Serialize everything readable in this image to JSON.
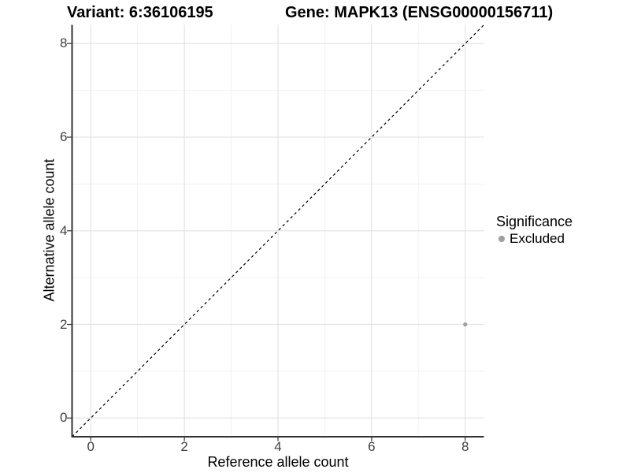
{
  "header": {
    "variant_title": "Variant: 6:36106195",
    "gene_title": "Gene: MAPK13 (ENSG00000156711)"
  },
  "chart_data": {
    "type": "scatter",
    "title_left": "Variant: 6:36106195",
    "title_right": "Gene: MAPK13 (ENSG00000156711)",
    "xlabel": "Reference allele count",
    "ylabel": "Alternative allele count",
    "xlim": [
      -0.4,
      8.4
    ],
    "ylim": [
      -0.4,
      8.4
    ],
    "x_ticks": [
      0,
      2,
      4,
      6,
      8
    ],
    "y_ticks": [
      0,
      2,
      4,
      6,
      8
    ],
    "x_minor_ticks": [
      1,
      3,
      5,
      7
    ],
    "y_minor_ticks": [
      1,
      3,
      5,
      7
    ],
    "grid": "major+minor",
    "legend_title": "Significance",
    "legend_position": "right",
    "series": [
      {
        "name": "Excluded",
        "color": "#a0a0a0",
        "points": [
          {
            "x": 8,
            "y": 2
          }
        ]
      }
    ],
    "reference_line": {
      "type": "identity y=x",
      "style": "dashed",
      "color": "#000000"
    }
  },
  "style": {
    "background": "#ffffff",
    "axis_line_color": "#333333",
    "tick_color": "#333333",
    "tick_label_color": "#404040",
    "grid_major_color": "#e4e4e4",
    "grid_minor_color": "#f1f1f1",
    "point_color": "#a0a0a0"
  }
}
